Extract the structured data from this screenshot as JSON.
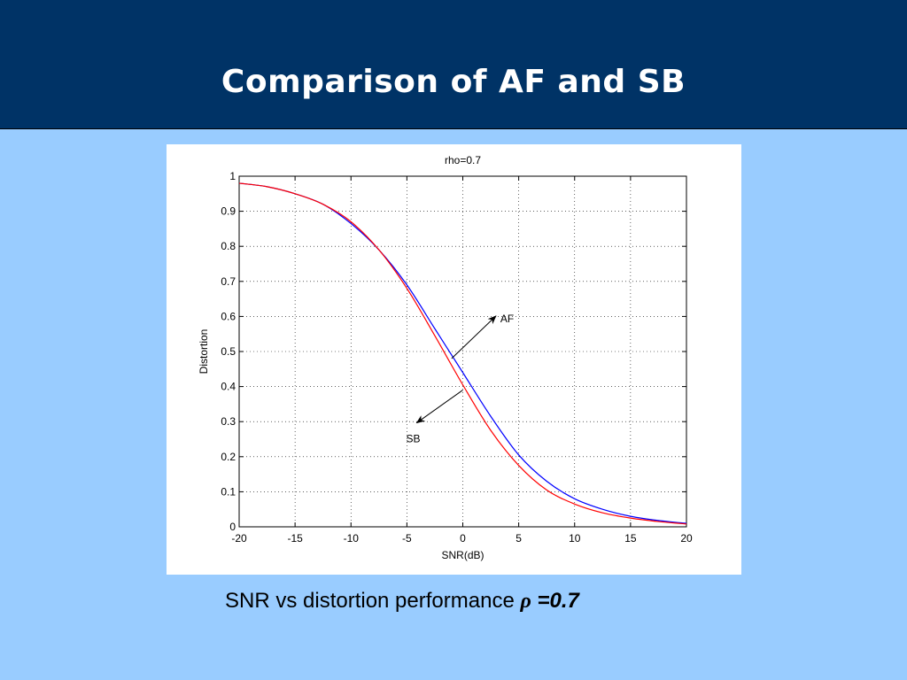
{
  "slide": {
    "title": "Comparison of AF and SB",
    "caption_text": "SNR vs distortion performance ",
    "caption_symbol": "ρ",
    "caption_value": " =0.7"
  },
  "colors": {
    "header_bg": "#003366",
    "slide_bg": "#99ccff",
    "AF": "#0000ff",
    "SB": "#ff0000"
  },
  "chart_data": {
    "type": "line",
    "title": "rho=0.7",
    "xlabel": "SNR(dB)",
    "ylabel": "Distortion",
    "xlim": [
      -20,
      20
    ],
    "ylim": [
      0,
      1
    ],
    "x_ticks": [
      "-20",
      "-15",
      "-10",
      "-5",
      "0",
      "5",
      "10",
      "15",
      "20"
    ],
    "y_ticks": [
      "0",
      "0.1",
      "0.2",
      "0.3",
      "0.4",
      "0.5",
      "0.6",
      "0.7",
      "0.8",
      "0.9",
      "1"
    ],
    "grid": true,
    "x": [
      -20,
      -17.5,
      -15,
      -12.5,
      -10,
      -7.5,
      -5,
      -2.5,
      0,
      2.5,
      5,
      7.5,
      10,
      12.5,
      15,
      17.5,
      20
    ],
    "series": [
      {
        "name": "AF",
        "color": "#0000ff",
        "values": [
          0.98,
          0.97,
          0.95,
          0.92,
          0.865,
          0.79,
          0.69,
          0.565,
          0.44,
          0.315,
          0.205,
          0.13,
          0.08,
          0.05,
          0.03,
          0.018,
          0.01
        ]
      },
      {
        "name": "SB",
        "color": "#ff0000",
        "values": [
          0.98,
          0.97,
          0.95,
          0.92,
          0.87,
          0.79,
          0.68,
          0.545,
          0.405,
          0.275,
          0.175,
          0.105,
          0.065,
          0.04,
          0.025,
          0.015,
          0.008
        ]
      }
    ],
    "annotations": [
      {
        "text": "AF",
        "target_x": -1,
        "target_y": 0.48
      },
      {
        "text": "SB",
        "target_x": 0,
        "target_y": 0.39
      }
    ]
  }
}
